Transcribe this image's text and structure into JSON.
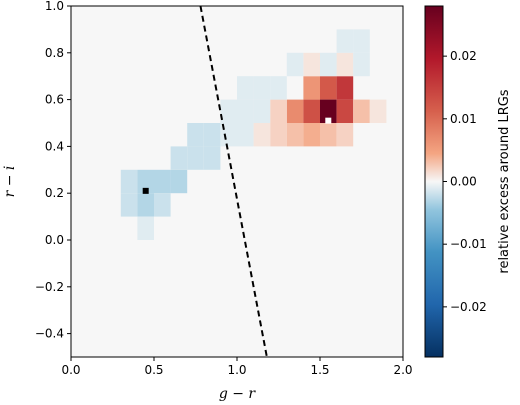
{
  "chart_data": {
    "type": "heatmap",
    "title": "",
    "xlabel": "g − r",
    "ylabel": "r − i",
    "xlim": [
      0.0,
      2.0
    ],
    "ylim": [
      -0.5,
      1.0
    ],
    "xticks": [
      0.0,
      0.5,
      1.0,
      1.5,
      2.0
    ],
    "yticks": [
      -0.4,
      -0.2,
      0.0,
      0.2,
      0.4,
      0.6,
      0.8,
      1.0
    ],
    "xtick_labels": [
      "0.0",
      "0.5",
      "1.0",
      "1.5",
      "2.0"
    ],
    "ytick_labels": [
      "−0.4",
      "−0.2",
      "0.0",
      "0.2",
      "0.4",
      "0.6",
      "0.8",
      "1.0"
    ],
    "grid": false,
    "bin_width": 0.1,
    "cells": [
      {
        "x": 1.45,
        "y": 0.65,
        "v": 0.006
      },
      {
        "x": 1.55,
        "y": 0.65,
        "v": 0.012
      },
      {
        "x": 1.65,
        "y": 0.65,
        "v": 0.016
      },
      {
        "x": 1.35,
        "y": 0.55,
        "v": 0.007
      },
      {
        "x": 1.45,
        "y": 0.55,
        "v": 0.013
      },
      {
        "x": 1.55,
        "y": 0.55,
        "v": 0.028
      },
      {
        "x": 1.65,
        "y": 0.55,
        "v": 0.014
      },
      {
        "x": 1.75,
        "y": 0.55,
        "v": 0.003
      },
      {
        "x": 1.25,
        "y": 0.55,
        "v": 0.002
      },
      {
        "x": 1.25,
        "y": 0.45,
        "v": 0.002
      },
      {
        "x": 1.35,
        "y": 0.45,
        "v": 0.003
      },
      {
        "x": 1.45,
        "y": 0.45,
        "v": 0.004
      },
      {
        "x": 1.55,
        "y": 0.45,
        "v": 0.003
      },
      {
        "x": 1.65,
        "y": 0.45,
        "v": 0.002
      },
      {
        "x": 1.45,
        "y": 0.75,
        "v": 0.001
      },
      {
        "x": 1.65,
        "y": 0.75,
        "v": 0.001
      },
      {
        "x": 0.35,
        "y": 0.25,
        "v": -0.002
      },
      {
        "x": 0.45,
        "y": 0.25,
        "v": -0.003
      },
      {
        "x": 0.55,
        "y": 0.25,
        "v": -0.003
      },
      {
        "x": 0.65,
        "y": 0.25,
        "v": -0.003
      },
      {
        "x": 0.35,
        "y": 0.15,
        "v": -0.002
      },
      {
        "x": 0.45,
        "y": 0.15,
        "v": -0.003
      },
      {
        "x": 0.55,
        "y": 0.15,
        "v": -0.002
      },
      {
        "x": 0.45,
        "y": 0.05,
        "v": -0.001
      },
      {
        "x": 0.65,
        "y": 0.35,
        "v": -0.002
      },
      {
        "x": 0.75,
        "y": 0.35,
        "v": -0.002
      },
      {
        "x": 0.85,
        "y": 0.35,
        "v": -0.002
      },
      {
        "x": 0.75,
        "y": 0.45,
        "v": -0.002
      },
      {
        "x": 0.85,
        "y": 0.45,
        "v": -0.002
      },
      {
        "x": 0.95,
        "y": 0.45,
        "v": -0.001
      },
      {
        "x": 1.05,
        "y": 0.45,
        "v": -0.001
      },
      {
        "x": 0.95,
        "y": 0.55,
        "v": -0.001
      },
      {
        "x": 1.05,
        "y": 0.55,
        "v": -0.001
      },
      {
        "x": 1.15,
        "y": 0.55,
        "v": -0.001
      },
      {
        "x": 1.05,
        "y": 0.65,
        "v": -0.001
      },
      {
        "x": 1.15,
        "y": 0.65,
        "v": -0.001
      },
      {
        "x": 1.25,
        "y": 0.65,
        "v": -0.001
      },
      {
        "x": 1.35,
        "y": 0.75,
        "v": -0.001
      },
      {
        "x": 1.55,
        "y": 0.75,
        "v": -0.001
      },
      {
        "x": 1.75,
        "y": 0.75,
        "v": -0.001
      },
      {
        "x": 1.65,
        "y": 0.85,
        "v": -0.001
      },
      {
        "x": 1.75,
        "y": 0.85,
        "v": -0.001
      },
      {
        "x": 1.85,
        "y": 0.55,
        "v": 0.001
      },
      {
        "x": 1.15,
        "y": 0.45,
        "v": 0.001
      }
    ],
    "markers": [
      {
        "x": 0.45,
        "y": 0.21,
        "color": "#000000"
      },
      {
        "x": 1.55,
        "y": 0.51,
        "color": "#ffffff"
      }
    ],
    "dividing_line": {
      "x1": 0.78,
      "y1": 1.0,
      "x2": 1.18,
      "y2": -0.5,
      "style": "dashed",
      "color": "#000000"
    },
    "colorbar": {
      "label": "relative excess around LRGs",
      "vmin": -0.028,
      "vmax": 0.028,
      "ticks": [
        -0.02,
        -0.01,
        0.0,
        0.01,
        0.02
      ],
      "tick_labels": [
        "−0.02",
        "−0.01",
        "0.00",
        "0.01",
        "0.02"
      ],
      "colormap": "RdBu_r"
    }
  }
}
